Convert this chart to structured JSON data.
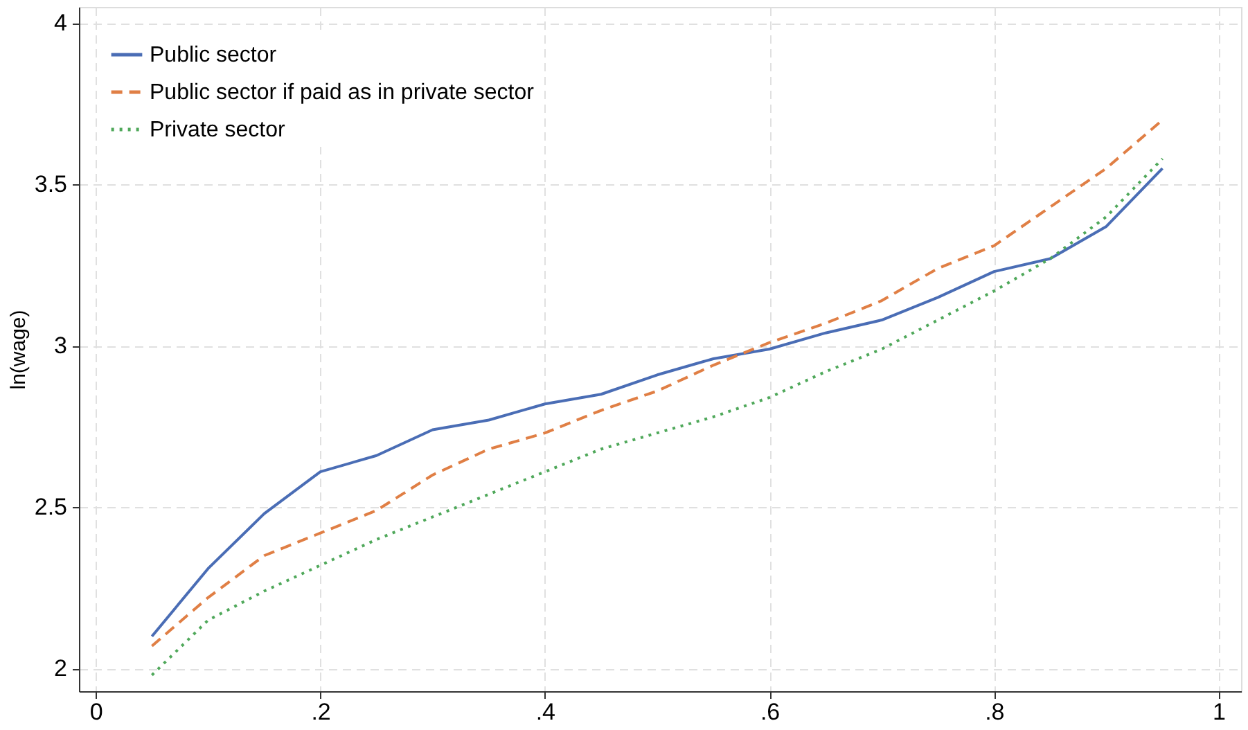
{
  "chart_data": {
    "type": "line",
    "ylabel": "ln(wage)",
    "x": [
      0.05,
      0.1,
      0.15,
      0.2,
      0.25,
      0.3,
      0.35,
      0.4,
      0.45,
      0.5,
      0.55,
      0.6,
      0.65,
      0.7,
      0.75,
      0.8,
      0.85,
      0.9,
      0.95
    ],
    "series": [
      {
        "name": "Public sector",
        "color": "#4a6db5",
        "line_style": "solid",
        "values": [
          2.1,
          2.31,
          2.48,
          2.61,
          2.66,
          2.74,
          2.77,
          2.82,
          2.85,
          2.91,
          2.96,
          2.99,
          3.04,
          3.08,
          3.15,
          3.23,
          3.27,
          3.37,
          3.55
        ]
      },
      {
        "name": "Public sector if paid as in private sector",
        "color": "#e07f45",
        "line_style": "dashed",
        "values": [
          2.07,
          2.22,
          2.35,
          2.42,
          2.49,
          2.6,
          2.68,
          2.73,
          2.8,
          2.86,
          2.94,
          3.01,
          3.07,
          3.14,
          3.24,
          3.31,
          3.43,
          3.55,
          3.7
        ]
      },
      {
        "name": "Private sector",
        "color": "#4fa85a",
        "line_style": "dotted",
        "values": [
          1.98,
          2.15,
          2.24,
          2.32,
          2.4,
          2.47,
          2.54,
          2.61,
          2.68,
          2.73,
          2.78,
          2.84,
          2.92,
          2.99,
          3.08,
          3.17,
          3.27,
          3.4,
          3.58
        ]
      }
    ],
    "xlim": [
      -0.015,
      1.02
    ],
    "ylim": [
      1.93,
      4.05
    ],
    "xticks": [
      0,
      {
        "value": 0.2,
        "label": ".2"
      },
      {
        "value": 0.4,
        "label": ".4"
      },
      {
        "value": 0.6,
        "label": ".6"
      },
      {
        "value": 0.8,
        "label": ".8"
      },
      1
    ],
    "yticks": [
      2,
      2.5,
      3,
      3.5,
      4
    ],
    "grid": true,
    "legend": "top left",
    "marker": "none"
  }
}
